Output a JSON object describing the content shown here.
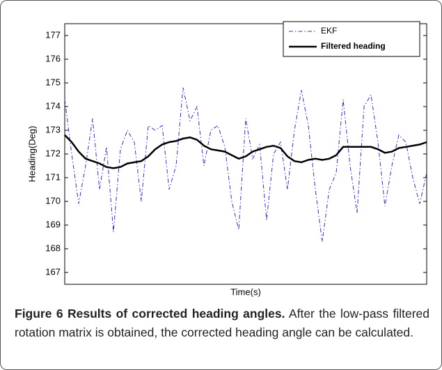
{
  "chart_data": {
    "type": "line",
    "ylabel": "Heading(Deg)",
    "xlabel": "Time(s)",
    "ylim": [
      166.5,
      177.5
    ],
    "yticks": [
      167,
      168,
      169,
      170,
      171,
      172,
      173,
      174,
      175,
      176,
      177
    ],
    "legend": "upper right",
    "series": [
      {
        "name": "EKF",
        "color": "#3030b0",
        "style": "dashdot",
        "values": [
          174.3,
          172.0,
          169.9,
          171.5,
          173.5,
          170.5,
          172.3,
          168.7,
          172.2,
          173.0,
          172.5,
          170.0,
          173.2,
          173.0,
          173.2,
          170.5,
          171.5,
          174.8,
          173.4,
          174.0,
          171.5,
          173.0,
          173.2,
          172.3,
          170.0,
          168.8,
          173.5,
          171.8,
          172.4,
          169.2,
          172.0,
          172.5,
          170.5,
          173.0,
          174.7,
          173.2,
          170.5,
          168.3,
          170.5,
          171.2,
          174.3,
          171.5,
          169.5,
          174.0,
          174.5,
          172.5,
          169.8,
          171.5,
          172.8,
          172.5,
          171.0,
          169.9,
          171.2
        ]
      },
      {
        "name": "Filtered heading",
        "color": "#000000",
        "style": "solid",
        "values": [
          172.8,
          172.5,
          172.1,
          171.8,
          171.7,
          171.6,
          171.45,
          171.4,
          171.45,
          171.6,
          171.65,
          171.7,
          171.9,
          172.2,
          172.4,
          172.5,
          172.55,
          172.65,
          172.7,
          172.6,
          172.35,
          172.2,
          172.15,
          172.1,
          171.95,
          171.8,
          171.9,
          172.1,
          172.2,
          172.3,
          172.35,
          172.25,
          171.9,
          171.7,
          171.65,
          171.75,
          171.8,
          171.75,
          171.8,
          171.95,
          172.3,
          172.3,
          172.3,
          172.3,
          172.3,
          172.2,
          172.05,
          172.1,
          172.25,
          172.3,
          172.35,
          172.4,
          172.5
        ]
      }
    ]
  },
  "caption": {
    "label": "Figure 6 Results of corrected heading angles.",
    "text": "After the low-pass filtered rotation matrix is obtained, the corrected heading angle can be calculated."
  }
}
